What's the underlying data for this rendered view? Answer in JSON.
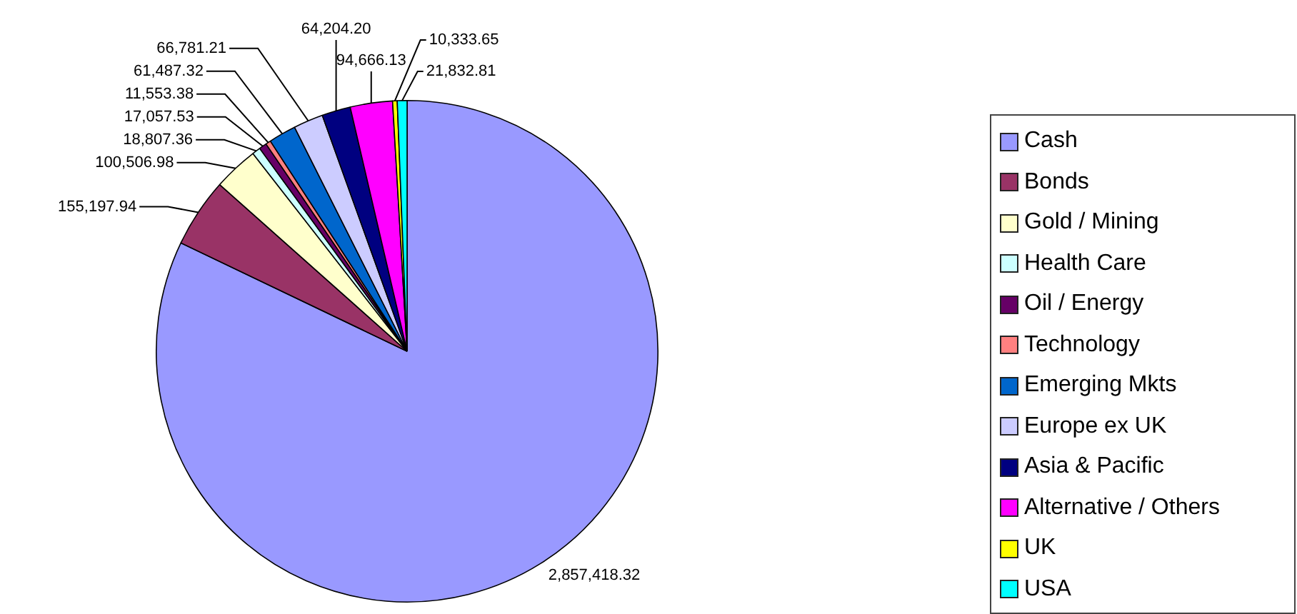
{
  "chart_data": {
    "type": "pie",
    "categories": [
      "Cash",
      "Bonds",
      "Gold / Mining",
      "Health Care",
      "Oil / Energy",
      "Technology",
      "Emerging Mkts",
      "Europe ex UK",
      "Asia & Pacific",
      "Alternative / Others",
      "UK",
      "USA"
    ],
    "values": [
      2857418.32,
      155197.94,
      100506.98,
      18807.36,
      17057.53,
      11553.38,
      61487.32,
      66781.21,
      64204.2,
      94666.13,
      10333.65,
      21832.81
    ],
    "colors": [
      "#9999ff",
      "#993366",
      "#ffffcc",
      "#ccffff",
      "#660066",
      "#ff8080",
      "#0066cc",
      "#ccccff",
      "#000080",
      "#ff00ff",
      "#ffff00",
      "#00ffff"
    ],
    "value_labels": [
      "2,857,418.32",
      "155,197.94",
      "100,506.98",
      "18,807.36",
      "17,057.53",
      "11,553.38",
      "61,487.32",
      "66,781.21",
      "64,204.20",
      "94,666.13",
      "10,333.65",
      "21,832.81"
    ],
    "legend": "right"
  }
}
